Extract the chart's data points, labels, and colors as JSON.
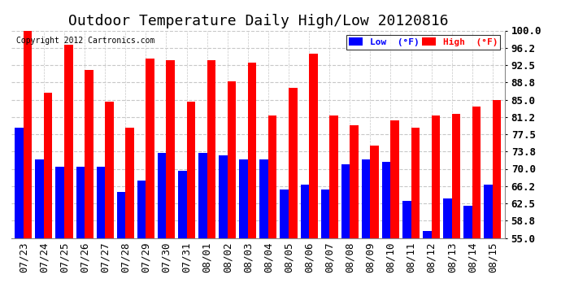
{
  "title": "Outdoor Temperature Daily High/Low 20120816",
  "copyright": "Copyright 2012 Cartronics.com",
  "legend_low_label": "Low  (°F)",
  "legend_high_label": "High  (°F)",
  "dates": [
    "07/23",
    "07/24",
    "07/25",
    "07/26",
    "07/27",
    "07/28",
    "07/29",
    "07/30",
    "07/31",
    "08/01",
    "08/02",
    "08/03",
    "08/04",
    "08/05",
    "08/06",
    "08/07",
    "08/08",
    "08/09",
    "08/10",
    "08/11",
    "08/12",
    "08/13",
    "08/14",
    "08/15"
  ],
  "highs": [
    100.0,
    86.5,
    97.0,
    91.5,
    84.5,
    79.0,
    94.0,
    93.5,
    84.5,
    93.5,
    89.0,
    93.0,
    81.5,
    87.5,
    95.0,
    81.5,
    79.5,
    75.0,
    80.5,
    79.0,
    81.5,
    82.0,
    83.5,
    85.0
  ],
  "lows": [
    79.0,
    72.0,
    70.5,
    70.5,
    70.5,
    65.0,
    67.5,
    73.5,
    69.5,
    73.5,
    73.0,
    72.0,
    72.0,
    65.5,
    66.5,
    65.5,
    71.0,
    72.0,
    71.5,
    63.0,
    56.5,
    63.5,
    62.0,
    66.5
  ],
  "low_color": "#0000ff",
  "high_color": "#ff0000",
  "background_color": "#ffffff",
  "plot_background": "#ffffff",
  "grid_color": "#c8c8c8",
  "ylim": [
    55.0,
    100.0
  ],
  "yticks": [
    55.0,
    58.8,
    62.5,
    66.2,
    70.0,
    73.8,
    77.5,
    81.2,
    85.0,
    88.8,
    92.5,
    96.2,
    100.0
  ],
  "title_fontsize": 13,
  "axis_fontsize": 9,
  "bar_width": 0.42,
  "figwidth": 6.9,
  "figheight": 3.75,
  "dpi": 100
}
